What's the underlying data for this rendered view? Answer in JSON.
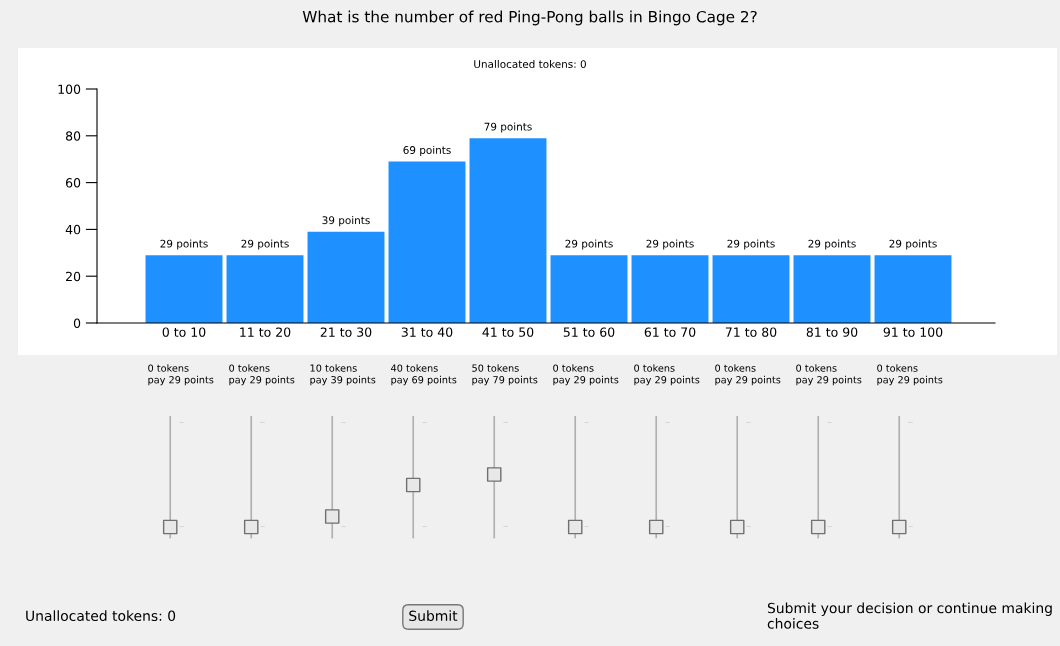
{
  "chart_data": [
    {
      "type": "bar",
      "title": "What is the number of red Ping-Pong balls in Bingo Cage 2?",
      "subtitle": "Unallocated tokens: 0",
      "categories": [
        "0 to 10",
        "11 to 20",
        "21 to 30",
        "31 to 40",
        "41 to 50",
        "51 to 60",
        "61 to 70",
        "71 to 80",
        "81 to 90",
        "91 to 100"
      ],
      "values": [
        29,
        29,
        39,
        69,
        79,
        29,
        29,
        29,
        29,
        29
      ],
      "value_labels": [
        "29 points",
        "29 points",
        "39 points",
        "69 points",
        "79 points",
        "29 points",
        "29 points",
        "29 points",
        "29 points",
        "29 points"
      ],
      "color": "#1e90ff",
      "ylim": [
        0,
        100
      ],
      "yticks": [
        0,
        20,
        40,
        60,
        80,
        100
      ],
      "grid": false
    },
    {
      "type": "other",
      "categories": [
        null,
        null,
        null,
        null,
        null,
        null,
        null,
        null,
        null,
        null
      ],
      "values": [
        0,
        0,
        10,
        40,
        50,
        0,
        0,
        0,
        0,
        0
      ],
      "value_labels": [
        "0 tokens\npay 29 points",
        "0 tokens\npay 29 points",
        "10 tokens\npay 39 points",
        "40 tokens\npay 69 points",
        "50 tokens\npay 79 points",
        "0 tokens\npay 29 points",
        "0 tokens\npay 29 points",
        "0 tokens\npay 29 points",
        "0 tokens\npay 29 points",
        "0 tokens\npay 29 points"
      ],
      "color": "#e8e8e8",
      "annotations": [
        "Unallocated tokens: 0",
        "Submit",
        "Submit your decision or continue making choices"
      ]
    }
  ]
}
